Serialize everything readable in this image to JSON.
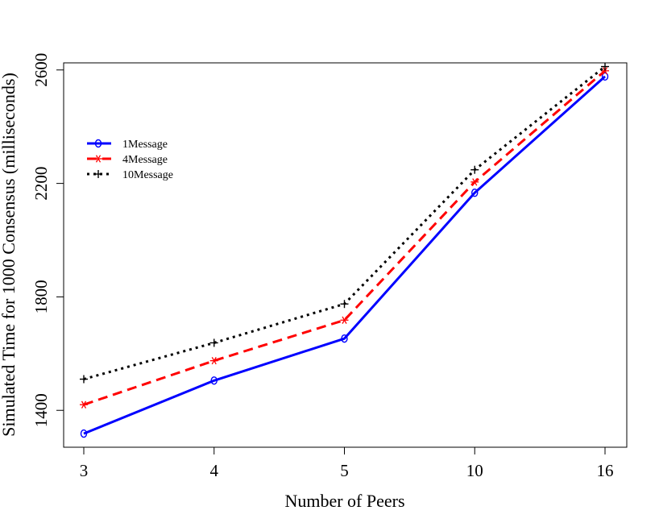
{
  "chart_data": {
    "type": "line",
    "title": "",
    "xlabel": "Number of Peers",
    "ylabel": "Simulated Time for 1000 Consensus (milliseconds)",
    "categories": [
      "3",
      "4",
      "5",
      "10",
      "16"
    ],
    "yticks": [
      1400,
      1800,
      2200,
      2600
    ],
    "ylim": [
      1270,
      2625
    ],
    "grid": false,
    "legend_position": "top-left",
    "series": [
      {
        "name": "1Message",
        "values": [
          1318,
          1505,
          1653,
          2167,
          2577
        ],
        "color": "#0000ff",
        "dash": "solid",
        "marker": "o"
      },
      {
        "name": "4Message",
        "values": [
          1420,
          1575,
          1718,
          2205,
          2597
        ],
        "color": "#ff0000",
        "dash": "dashed",
        "marker": "*"
      },
      {
        "name": "10Message",
        "values": [
          1510,
          1638,
          1775,
          2248,
          2612
        ],
        "color": "#000000",
        "dash": "dotted",
        "marker": "+"
      }
    ]
  }
}
